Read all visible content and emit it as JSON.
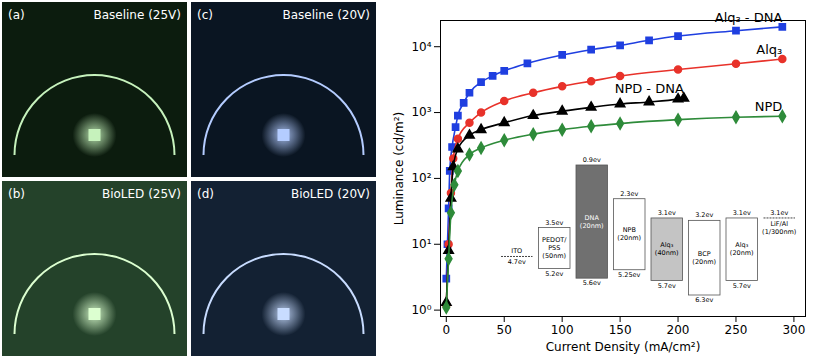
{
  "photo_panels": [
    {
      "letter": "(a)",
      "label": "Baseline (25V)",
      "background": "#0c1c0e",
      "color": "#c6f2bc"
    },
    {
      "letter": "(c)",
      "label": "Baseline (20V)",
      "background": "#0a1522",
      "color": "#b4ccff"
    },
    {
      "letter": "(b)",
      "label": "BioLED (25V)",
      "background": "#24422a",
      "color": "#dcffd0"
    },
    {
      "letter": "(d)",
      "label": "BioLED (20V)",
      "background": "#132133",
      "color": "#c8dcff"
    }
  ],
  "chart_data": {
    "type": "line",
    "x_label": "Current Density (mA/cm²)",
    "y_label": "Luminance (cd/m²)",
    "log": "y",
    "grid": false,
    "xlim": [
      -5,
      310
    ],
    "ylim": [
      0.8,
      25000
    ],
    "xticks": [
      0,
      50,
      100,
      150,
      200,
      250,
      300
    ],
    "yticks": [
      {
        "value": 1,
        "label": "10⁰"
      },
      {
        "value": 10,
        "label": "10¹"
      },
      {
        "value": 100,
        "label": "10²"
      },
      {
        "value": 1000,
        "label": "10³"
      },
      {
        "value": 10000,
        "label": "10⁴"
      }
    ],
    "series": [
      {
        "name": "Alq₃ - DNA",
        "color": "#1f3fe0",
        "marker": "square",
        "line_style": "solid",
        "x": [
          0,
          1,
          2,
          3,
          5,
          8,
          10,
          15,
          20,
          30,
          40,
          50,
          70,
          100,
          125,
          150,
          175,
          200,
          250,
          290
        ],
        "values": [
          3,
          10,
          35,
          130,
          300,
          600,
          900,
          1400,
          2000,
          2900,
          3600,
          4300,
          5600,
          7500,
          9000,
          10500,
          12500,
          14500,
          17500,
          20000
        ]
      },
      {
        "name": "Alq₃",
        "color": "#e8322a",
        "marker": "circle",
        "line_style": "solid",
        "x": [
          0,
          2,
          4,
          6,
          10,
          20,
          30,
          50,
          75,
          100,
          125,
          150,
          200,
          250,
          290
        ],
        "values": [
          1.2,
          10,
          60,
          200,
          400,
          700,
          1000,
          1500,
          2000,
          2500,
          3000,
          3600,
          4500,
          5500,
          6500
        ]
      },
      {
        "name": "NPD - DNA",
        "color": "#000000",
        "marker": "triangle",
        "line_style": "solid",
        "x": [
          0,
          2,
          4,
          6,
          10,
          20,
          30,
          50,
          75,
          100,
          125,
          150,
          175,
          200,
          205
        ],
        "values": [
          1.3,
          8,
          50,
          150,
          280,
          450,
          550,
          700,
          900,
          1050,
          1200,
          1350,
          1450,
          1600,
          1650
        ]
      },
      {
        "name": "NPD",
        "color": "#2e8b3a",
        "marker": "diamond",
        "line_style": "solid",
        "x": [
          0,
          2,
          4,
          7,
          10,
          20,
          30,
          50,
          75,
          100,
          125,
          150,
          200,
          250,
          290
        ],
        "values": [
          1.1,
          6,
          30,
          80,
          130,
          230,
          290,
          380,
          470,
          550,
          620,
          680,
          780,
          850,
          880
        ]
      }
    ]
  },
  "energy_diagram": {
    "layers": [
      {
        "name": "ITO",
        "level": {
          "value": 4.7,
          "label": "4.7ev"
        }
      },
      {
        "name": "PEDOT/PSS",
        "thickness": "(50nm)",
        "lumo": {
          "value": 3.5,
          "label": "3.5ev"
        },
        "homo": {
          "value": 5.2,
          "label": "5.2ev"
        },
        "color": "#ffffff"
      },
      {
        "name": "DNA",
        "thickness": "(20nm)",
        "lumo": {
          "value": 0.9,
          "label": "0.9ev"
        },
        "homo": {
          "value": 5.6,
          "label": "5.6ev"
        },
        "color": "#707070"
      },
      {
        "name": "NPB",
        "thickness": "(20nm)",
        "lumo": {
          "value": 2.3,
          "label": "2.3ev"
        },
        "homo": {
          "value": 5.25,
          "label": "5.25ev"
        },
        "color": "#ffffff"
      },
      {
        "name": "Alq₃",
        "thickness": "(40nm)",
        "lumo": {
          "value": 3.1,
          "label": "3.1ev"
        },
        "homo": {
          "value": 5.7,
          "label": "5.7ev"
        },
        "color": "#c4c4c4"
      },
      {
        "name": "BCP",
        "thickness": "(20nm)",
        "lumo": {
          "value": 3.2,
          "label": "3.2ev"
        },
        "homo": {
          "value": 6.3,
          "label": "6.3ev"
        },
        "color": "#ffffff"
      },
      {
        "name": "Alq₃",
        "thickness": "(20nm)",
        "lumo": {
          "value": 3.1,
          "label": "3.1ev"
        },
        "homo": {
          "value": 5.7,
          "label": "5.7ev"
        },
        "color": "#ffffff"
      },
      {
        "name": "LiF/Al",
        "thickness": "(1/300nm)",
        "level": {
          "value": 3.1,
          "label": "3.1ev"
        }
      }
    ]
  }
}
